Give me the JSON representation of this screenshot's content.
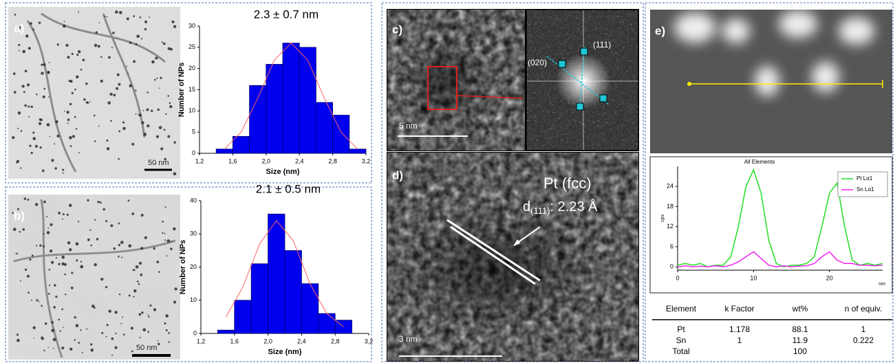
{
  "panels": {
    "a": "a)",
    "b": "b)",
    "c": "c)",
    "d": "d)",
    "e": "e)"
  },
  "scale_bars": {
    "a": "50 nm",
    "b": "50 nm",
    "c": "5 nm",
    "d": "3 nm"
  },
  "fft_labels": {
    "plane_1": "(111)",
    "plane_2": "(020)"
  },
  "lattice": {
    "phase": "Pt (fcc)",
    "d_symbol": "d",
    "d_index": "(111)",
    "d_value": ": 2.23 Å"
  },
  "chart_data": [
    {
      "type": "histogram",
      "title": "2.3 ± 0.7 nm",
      "x_label": "Size (nm)",
      "y_label": "Number of NPs",
      "bins": [
        1.4,
        1.6,
        1.8,
        2.0,
        2.2,
        2.4,
        2.6,
        2.8,
        3.0,
        3.2
      ],
      "values": [
        1,
        4,
        16,
        21,
        26,
        25,
        12,
        9,
        1
      ],
      "color": "#0000ee",
      "fit": {
        "color": "#ff6060",
        "x": [
          1.5,
          1.7,
          1.9,
          2.1,
          2.3,
          2.5,
          2.7,
          2.9,
          3.1
        ],
        "y": [
          1,
          5,
          13,
          22,
          26,
          22,
          13,
          5,
          1
        ]
      },
      "xlim": [
        1.2,
        3.2
      ],
      "ylim": [
        0,
        30
      ],
      "xticks": [
        {
          "value": 1.2,
          "label": "1,2"
        },
        {
          "value": 1.6,
          "label": "1,6"
        },
        {
          "value": 2.0,
          "label": "2,0"
        },
        {
          "value": 2.4,
          "label": "2,4"
        },
        {
          "value": 2.8,
          "label": "2,8"
        },
        {
          "value": 3.2,
          "label": "3,2"
        }
      ],
      "yticks": [
        0,
        5,
        10,
        15,
        20,
        25,
        30
      ]
    },
    {
      "type": "histogram",
      "title": "2.1 ± 0.5 nm",
      "x_label": "Size (nm)",
      "y_label": "Number of NPs",
      "bins": [
        1.4,
        1.6,
        1.8,
        2.0,
        2.2,
        2.4,
        2.6,
        2.8,
        3.0
      ],
      "values": [
        1,
        10,
        21,
        36,
        25,
        15,
        6,
        4
      ],
      "color": "#0000ee",
      "fit": {
        "color": "#ff6060",
        "x": [
          1.5,
          1.7,
          1.9,
          2.1,
          2.3,
          2.5,
          2.7,
          2.9
        ],
        "y": [
          5,
          14,
          27,
          34,
          28,
          15,
          6,
          2
        ]
      },
      "xlim": [
        1.2,
        3.2
      ],
      "ylim": [
        0,
        40
      ],
      "xticks": [
        {
          "value": 1.2,
          "label": "1,2"
        },
        {
          "value": 1.6,
          "label": "1,6"
        },
        {
          "value": 2.0,
          "label": "2,0"
        },
        {
          "value": 2.4,
          "label": "2,4"
        },
        {
          "value": 2.8,
          "label": "2,8"
        },
        {
          "value": 3.2,
          "label": "3,2"
        }
      ],
      "yticks": [
        0,
        10,
        20,
        30,
        40
      ]
    },
    {
      "type": "line",
      "title": "All Elements",
      "x_label": "nm",
      "y_label": "cps",
      "x": [
        0,
        1,
        2,
        3,
        4,
        5,
        6,
        7,
        8,
        9,
        10,
        11,
        12,
        13,
        14,
        15,
        16,
        17,
        18,
        19,
        20,
        21,
        22,
        23,
        24,
        25,
        26,
        27
      ],
      "series": [
        {
          "name": "Pt Lα1",
          "color": "#22dd22",
          "values": [
            0.5,
            1,
            0.5,
            1,
            0,
            0.5,
            0.5,
            3,
            12,
            24,
            29,
            22,
            8,
            1,
            0,
            0.5,
            0.5,
            1,
            3,
            12,
            22,
            25,
            12,
            2,
            0.5,
            1,
            0.5,
            1
          ]
        },
        {
          "name": "Sn Lα1",
          "color": "#ee22ee",
          "values": [
            0,
            0.3,
            0,
            0.2,
            0,
            0.3,
            0,
            0.5,
            1.5,
            3,
            4.5,
            2.5,
            0.5,
            0,
            0.3,
            0,
            0.2,
            0.3,
            1,
            3,
            4.5,
            2,
            1,
            1,
            0.5,
            0.5,
            0.3,
            0.5
          ]
        }
      ],
      "xlim": [
        0,
        27
      ],
      "ylim": [
        -1,
        30
      ],
      "xticks": [
        0,
        10,
        20
      ],
      "yticks": [
        0,
        6,
        12,
        18,
        24
      ]
    }
  ],
  "table": {
    "header": [
      "Element",
      "k Factor",
      "wt%",
      "n of equiv."
    ],
    "rows": [
      [
        "Pt",
        "1.178",
        "88.1",
        "1"
      ],
      [
        "Sn",
        "1",
        "11.9",
        "0.222"
      ],
      [
        "Total",
        null,
        "100",
        null
      ]
    ]
  }
}
